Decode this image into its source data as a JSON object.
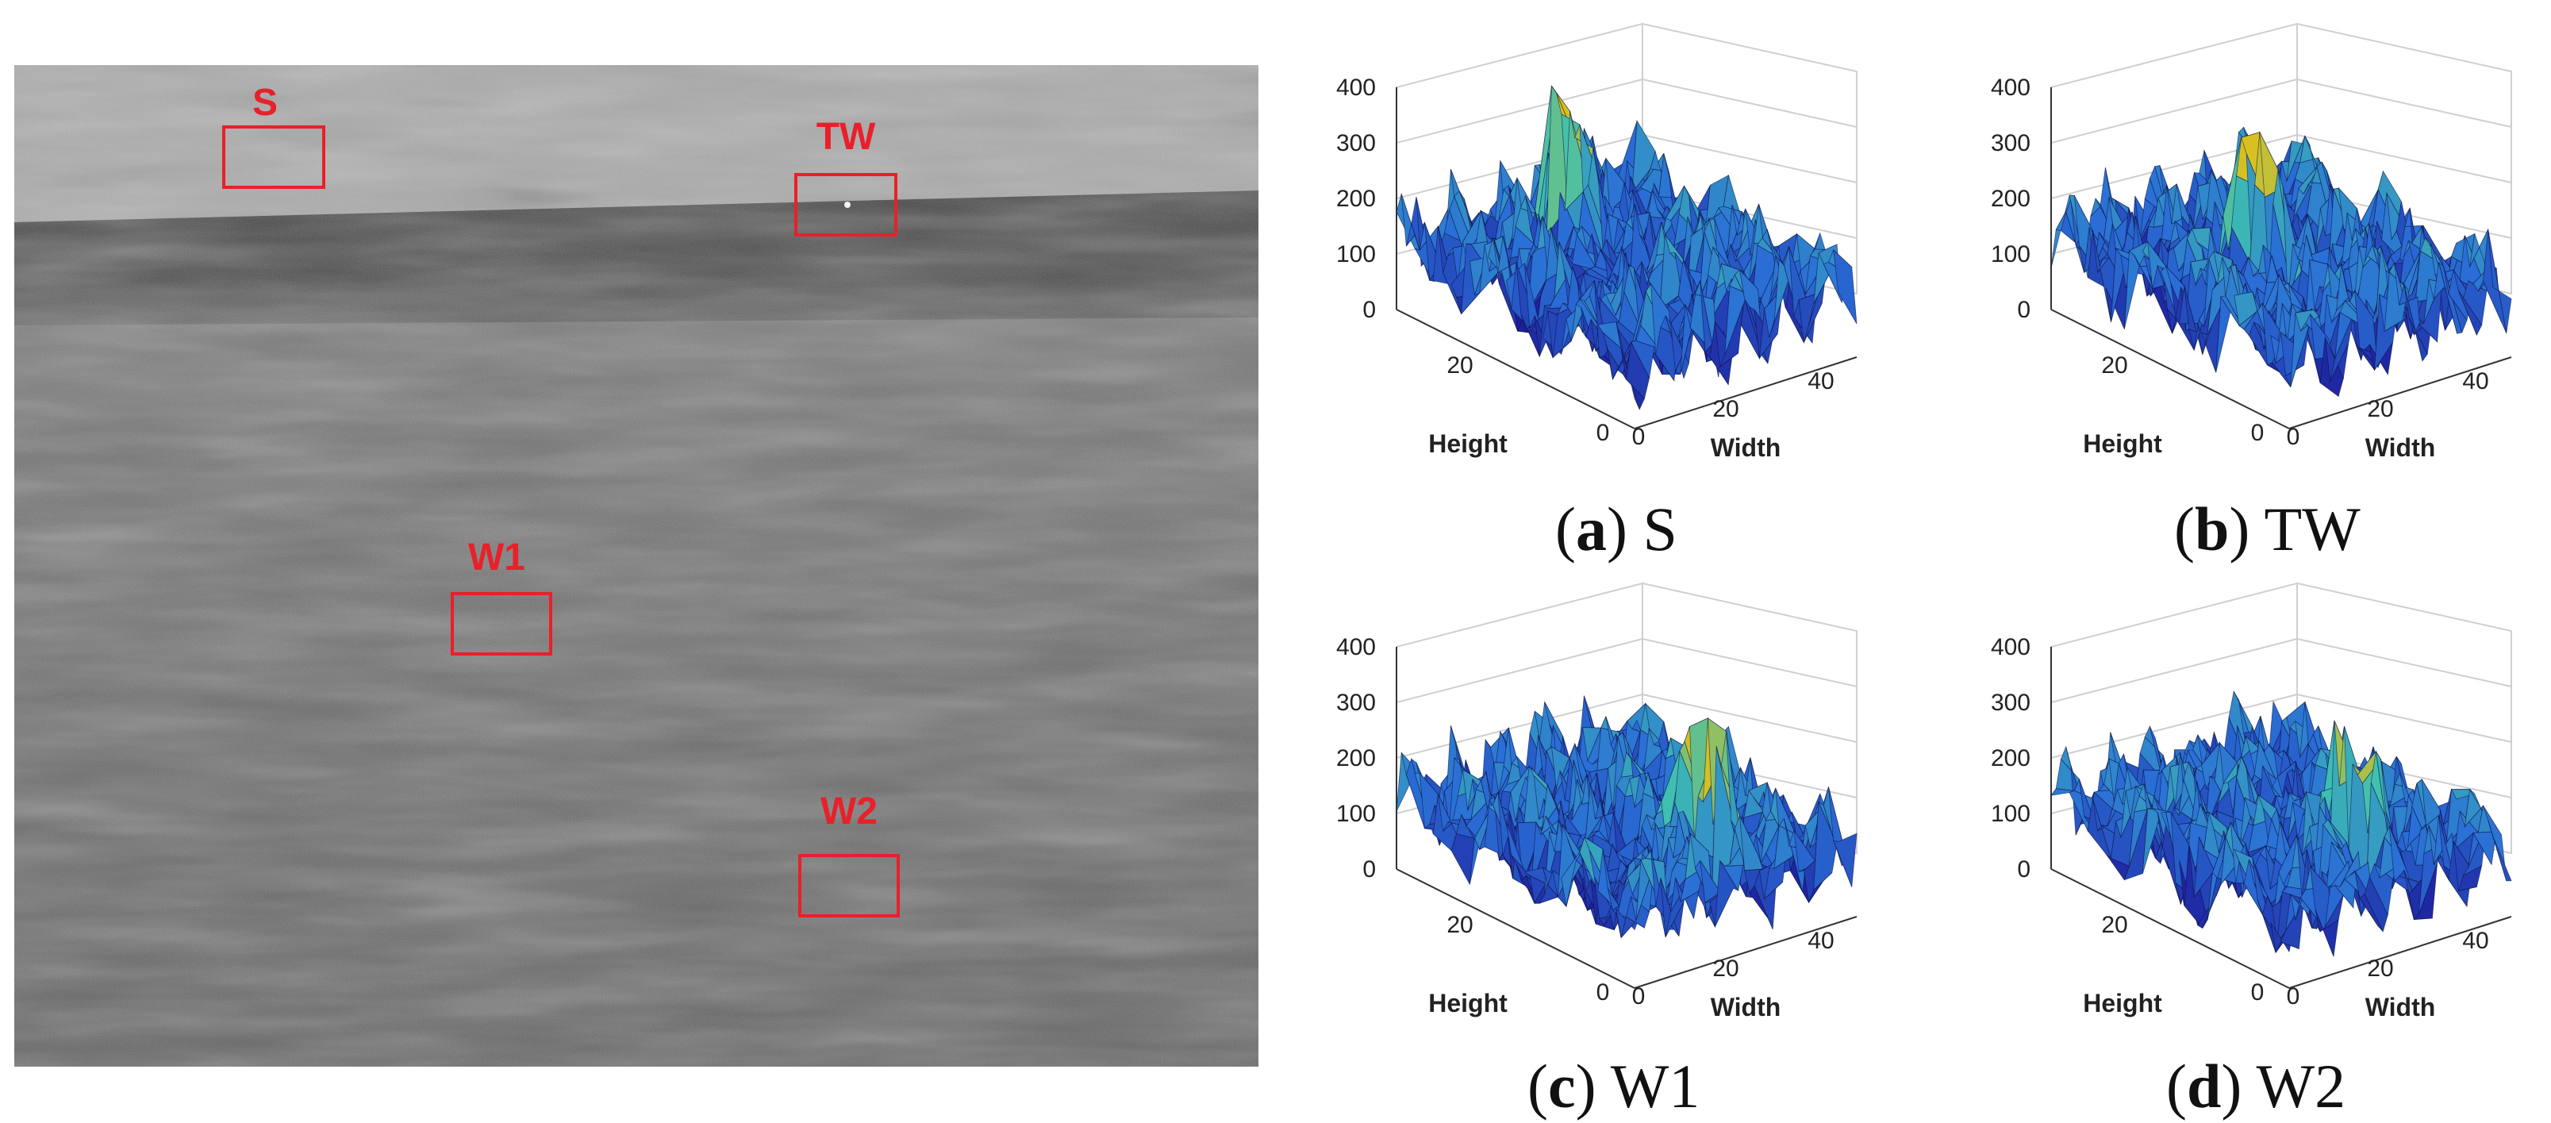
{
  "photo": {
    "regions": [
      {
        "id": "S",
        "label": "S"
      },
      {
        "id": "TW",
        "label": "TW"
      },
      {
        "id": "W1",
        "label": "W1"
      },
      {
        "id": "W2",
        "label": "W2"
      }
    ],
    "label_color": "#e8202a"
  },
  "panels": [
    {
      "letter": "a",
      "name": "S",
      "paren_open": "(",
      "paren_close": ")",
      "zticks": [
        "400",
        "300",
        "200",
        "100",
        "0"
      ],
      "height_ticks": [
        "20",
        "0"
      ],
      "width_ticks": [
        "0",
        "20",
        "40"
      ],
      "xlabel": "Height",
      "ylabel": "Width"
    },
    {
      "letter": "b",
      "name": "TW",
      "paren_open": "(",
      "paren_close": ")",
      "zticks": [
        "400",
        "300",
        "200",
        "100",
        "0"
      ],
      "height_ticks": [
        "20",
        "0"
      ],
      "width_ticks": [
        "0",
        "20",
        "40"
      ],
      "xlabel": "Height",
      "ylabel": "Width"
    },
    {
      "letter": "c",
      "name": "W1",
      "paren_open": "(",
      "paren_close": ")",
      "zticks": [
        "400",
        "300",
        "200",
        "100",
        "0"
      ],
      "height_ticks": [
        "20",
        "0"
      ],
      "width_ticks": [
        "0",
        "20",
        "40"
      ],
      "xlabel": "Height",
      "ylabel": "Width"
    },
    {
      "letter": "d",
      "name": "W2",
      "paren_open": "(",
      "paren_close": ")",
      "zticks": [
        "400",
        "300",
        "200",
        "100",
        "0"
      ],
      "height_ticks": [
        "20",
        "0"
      ],
      "width_ticks": [
        "0",
        "20",
        "40"
      ],
      "xlabel": "Height",
      "ylabel": "Width"
    }
  ],
  "colors": {
    "surface_low": "#1e1e9c",
    "surface_mid": "#2a6fd6",
    "surface_high": "#3fc0b0",
    "surface_peak": "#d8c020"
  }
}
